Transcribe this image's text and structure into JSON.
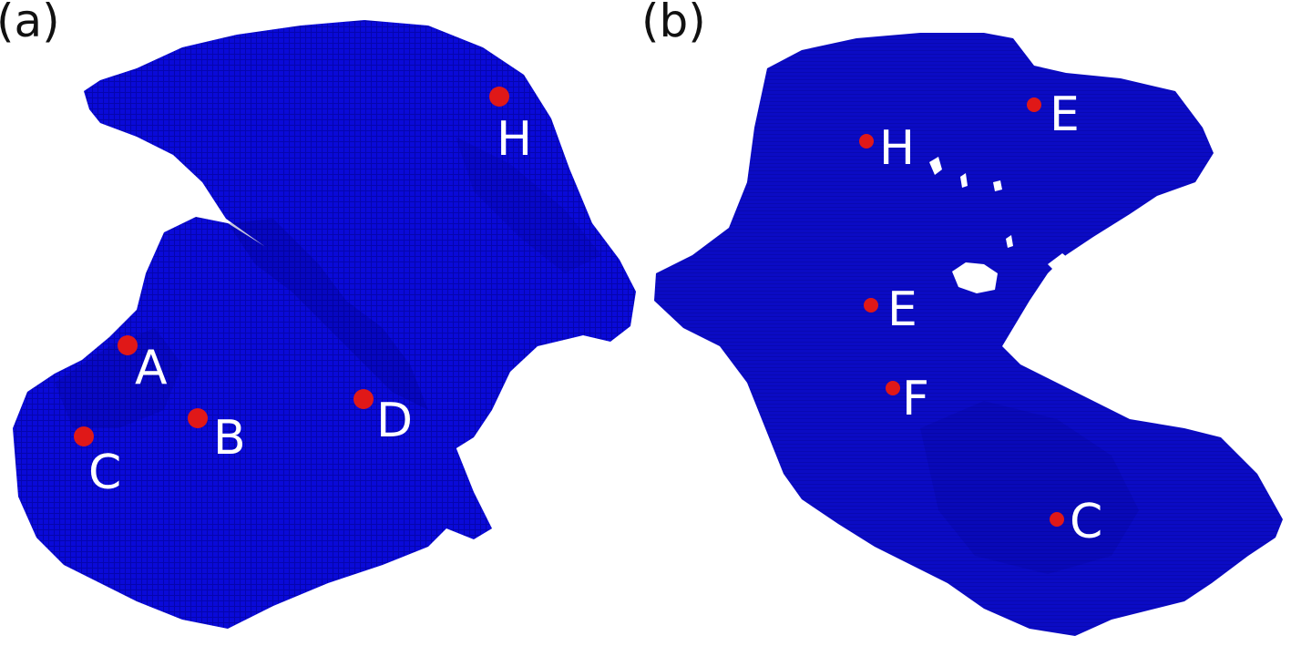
{
  "colors": {
    "mesh": "#0a0ad2",
    "mesh_dark": "#000088",
    "marker": "#e01818",
    "label": "#ffffff",
    "background": "#ffffff"
  },
  "panels": [
    {
      "label": "(a)",
      "points": [
        "H",
        "A",
        "B",
        "C",
        "D"
      ]
    },
    {
      "label": "(b)",
      "points": [
        "E",
        "H",
        "E",
        "F",
        "C"
      ]
    }
  ]
}
